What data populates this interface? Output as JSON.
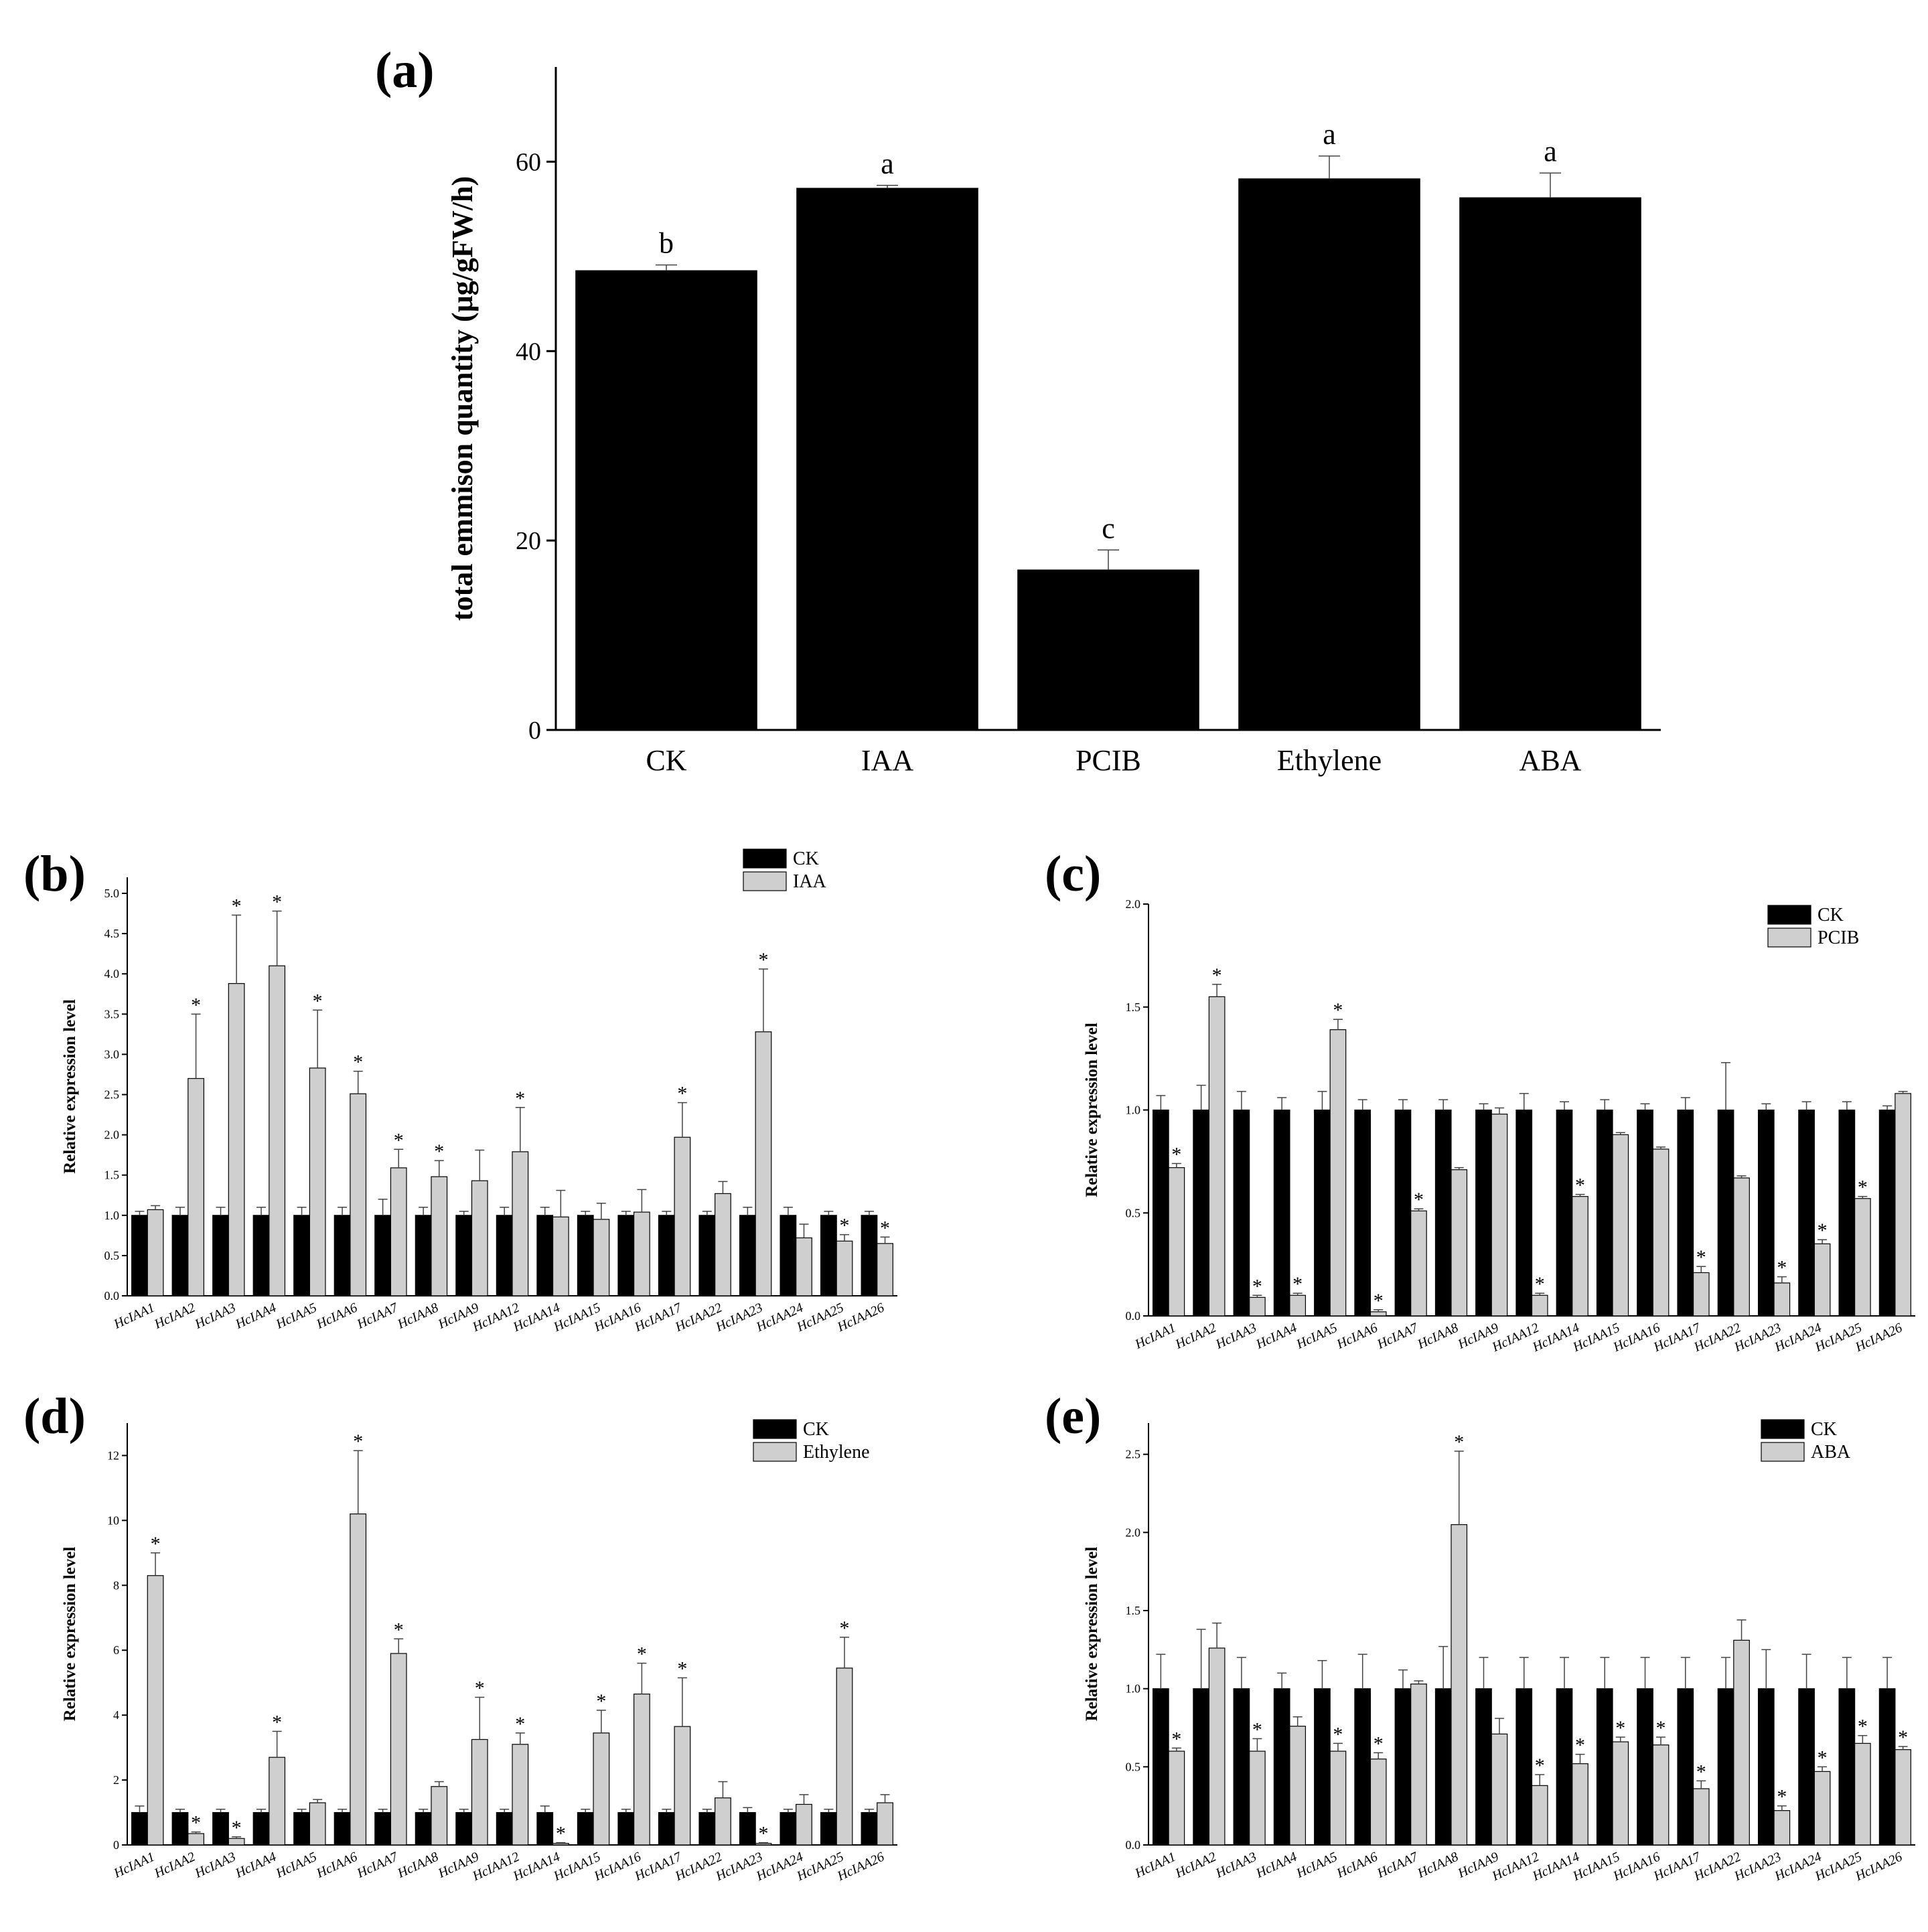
{
  "colors": {
    "control": "#000000",
    "treatment": "#cfcfcf",
    "axis": "#000000"
  },
  "chart_data": [
    {
      "id": "a",
      "panel_label": "(a)",
      "type": "bar",
      "ylabel": "total emmison quantity (μg/gFW/h)",
      "ylim": [
        0,
        70
      ],
      "yticks": [
        0,
        20,
        40,
        60
      ],
      "categories": [
        "CK",
        "IAA",
        "PCIB",
        "Ethylene",
        "ABA"
      ],
      "series": [
        {
          "values": [
            48.5,
            57.2,
            16.9,
            58.2,
            56.2
          ],
          "errors": [
            0.6,
            0.3,
            2.1,
            2.4,
            2.6
          ]
        }
      ],
      "significance": [
        "b",
        "a",
        "c",
        "a",
        "a"
      ]
    },
    {
      "id": "b",
      "panel_label": "(b)",
      "type": "bar",
      "ylabel": "Relative expression level",
      "ylim": [
        0,
        5.2
      ],
      "yticks": [
        "0.0",
        "0.5",
        "1.0",
        "1.5",
        "2.0",
        "2.5",
        "3.0",
        "3.5",
        "4.0",
        "4.5",
        "5.0"
      ],
      "categories": [
        "HcIAA1",
        "HcIAA2",
        "HcIAA3",
        "HcIAA4",
        "HcIAA5",
        "HcIAA6",
        "HcIAA7",
        "HcIAA8",
        "HcIAA9",
        "HcIAA12",
        "HcIAA14",
        "HcIAA15",
        "HcIAA16",
        "HcIAA17",
        "HcIAA22",
        "HcIAA23",
        "HcIAA24",
        "HcIAA25",
        "HcIAA26"
      ],
      "legend": [
        "CK",
        "IAA"
      ],
      "series": [
        {
          "name": "CK",
          "values": [
            1,
            1,
            1,
            1,
            1,
            1,
            1,
            1,
            1,
            1,
            1,
            1,
            1,
            1,
            1,
            1,
            1,
            1,
            1
          ],
          "errors": [
            0.05,
            0.1,
            0.1,
            0.1,
            0.1,
            0.1,
            0.2,
            0.1,
            0.05,
            0.1,
            0.1,
            0.05,
            0.05,
            0.05,
            0.05,
            0.1,
            0.1,
            0.05,
            0.05
          ]
        },
        {
          "name": "IAA",
          "values": [
            1.07,
            2.7,
            3.88,
            4.1,
            2.83,
            2.51,
            1.59,
            1.48,
            1.43,
            1.79,
            0.98,
            0.95,
            1.04,
            1.97,
            1.27,
            3.28,
            0.72,
            0.68,
            0.65
          ],
          "errors": [
            0.05,
            0.8,
            0.85,
            0.68,
            0.72,
            0.28,
            0.23,
            0.2,
            0.38,
            0.55,
            0.33,
            0.2,
            0.28,
            0.43,
            0.15,
            0.78,
            0.17,
            0.08,
            0.08
          ]
        }
      ],
      "significance": [
        "",
        "*",
        "*",
        "*",
        "*",
        "*",
        "*",
        "*",
        "",
        "*",
        "",
        "",
        "",
        "*",
        "",
        "*",
        "",
        "*",
        "*"
      ]
    },
    {
      "id": "c",
      "panel_label": "(c)",
      "type": "bar",
      "ylabel": "Relative expression level",
      "ylim": [
        0,
        2.0
      ],
      "yticks": [
        "0.0",
        "0.5",
        "1.0",
        "1.5",
        "2.0"
      ],
      "categories": [
        "HcIAA1",
        "HcIAA2",
        "HcIAA3",
        "HcIAA4",
        "HcIAA5",
        "HcIAA6",
        "HcIAA7",
        "HcIAA8",
        "HcIAA9",
        "HcIAA12",
        "HcIAA14",
        "HcIAA15",
        "HcIAA16",
        "HcIAA17",
        "HcIAA22",
        "HcIAA23",
        "HcIAA24",
        "HcIAA25",
        "HcIAA26"
      ],
      "legend": [
        "CK",
        "PCIB"
      ],
      "series": [
        {
          "name": "CK",
          "values": [
            1,
            1,
            1,
            1,
            1,
            1,
            1,
            1,
            1,
            1,
            1,
            1,
            1,
            1,
            1,
            1,
            1,
            1,
            1
          ],
          "errors": [
            0.07,
            0.12,
            0.09,
            0.06,
            0.09,
            0.05,
            0.05,
            0.05,
            0.03,
            0.08,
            0.04,
            0.05,
            0.03,
            0.06,
            0.23,
            0.03,
            0.04,
            0.04,
            0.02
          ]
        },
        {
          "name": "PCIB",
          "values": [
            0.72,
            1.55,
            0.09,
            0.1,
            1.39,
            0.02,
            0.51,
            0.71,
            0.98,
            0.1,
            0.58,
            0.88,
            0.81,
            0.21,
            0.67,
            0.16,
            0.35,
            0.57,
            1.08
          ],
          "errors": [
            0.02,
            0.06,
            0.01,
            0.01,
            0.05,
            0.01,
            0.01,
            0.01,
            0.03,
            0.01,
            0.01,
            0.01,
            0.01,
            0.03,
            0.01,
            0.03,
            0.02,
            0.01,
            0.01
          ]
        }
      ],
      "significance": [
        "*",
        "*",
        "*",
        "*",
        "*",
        "*",
        "*",
        "",
        "",
        "*",
        "*",
        "",
        "",
        "*",
        "",
        "*",
        "*",
        "*",
        ""
      ]
    },
    {
      "id": "d",
      "panel_label": "(d)",
      "type": "bar",
      "ylabel": "Relative expression level",
      "ylim": [
        0,
        13
      ],
      "yticks": [
        "0",
        "2",
        "4",
        "6",
        "8",
        "10",
        "12"
      ],
      "categories": [
        "HcIAA1",
        "HcIAA2",
        "HcIAA3",
        "HcIAA4",
        "HcIAA5",
        "HcIAA6",
        "HcIAA7",
        "HcIAA8",
        "HcIAA9",
        "HcIAA12",
        "HcIAA14",
        "HcIAA15",
        "HcIAA16",
        "HcIAA17",
        "HcIAA22",
        "HcIAA23",
        "HcIAA24",
        "HcIAA25",
        "HcIAA26"
      ],
      "legend": [
        "CK",
        "Ethylene"
      ],
      "series": [
        {
          "name": "CK",
          "values": [
            1,
            1,
            1,
            1,
            1,
            1,
            1,
            1,
            1,
            1,
            1,
            1,
            1,
            1,
            1,
            1,
            1,
            1,
            1
          ],
          "errors": [
            0.2,
            0.1,
            0.1,
            0.1,
            0.1,
            0.1,
            0.1,
            0.1,
            0.1,
            0.1,
            0.2,
            0.1,
            0.1,
            0.1,
            0.1,
            0.15,
            0.1,
            0.1,
            0.1
          ]
        },
        {
          "name": "Ethylene",
          "values": [
            8.3,
            0.35,
            0.2,
            2.7,
            1.3,
            10.2,
            5.9,
            1.8,
            3.25,
            3.1,
            0.05,
            3.45,
            4.65,
            3.65,
            1.45,
            0.05,
            1.25,
            5.45,
            1.3
          ],
          "errors": [
            0.7,
            0.05,
            0.05,
            0.8,
            0.1,
            1.95,
            0.45,
            0.15,
            1.3,
            0.35,
            0.02,
            0.7,
            0.95,
            1.5,
            0.5,
            0.02,
            0.3,
            0.95,
            0.25
          ]
        }
      ],
      "significance": [
        "*",
        "*",
        "*",
        "*",
        "",
        "*",
        "*",
        "",
        "*",
        "*",
        "*",
        "*",
        "*",
        "*",
        "",
        "*",
        "",
        "*",
        ""
      ]
    },
    {
      "id": "e",
      "panel_label": "(e)",
      "type": "bar",
      "ylabel": "Relative expression level",
      "ylim": [
        0,
        2.7
      ],
      "yticks": [
        "0.0",
        "0.5",
        "1.0",
        "1.5",
        "2.0",
        "2.5"
      ],
      "categories": [
        "HcIAA1",
        "HcIAA2",
        "HcIAA3",
        "HcIAA4",
        "HcIAA5",
        "HcIAA6",
        "HcIAA7",
        "HcIAA8",
        "HcIAA9",
        "HcIAA12",
        "HcIAA14",
        "HcIAA15",
        "HcIAA16",
        "HcIAA17",
        "HcIAA22",
        "HcIAA23",
        "HcIAA24",
        "HcIAA25",
        "HcIAA26"
      ],
      "legend": [
        "CK",
        "ABA"
      ],
      "series": [
        {
          "name": "CK",
          "values": [
            1,
            1,
            1,
            1,
            1,
            1,
            1,
            1,
            1,
            1,
            1,
            1,
            1,
            1,
            1,
            1,
            1,
            1,
            1
          ],
          "errors": [
            0.22,
            0.38,
            0.2,
            0.1,
            0.18,
            0.22,
            0.12,
            0.27,
            0.2,
            0.2,
            0.2,
            0.2,
            0.2,
            0.2,
            0.2,
            0.25,
            0.22,
            0.2,
            0.2
          ]
        },
        {
          "name": "ABA",
          "values": [
            0.6,
            1.26,
            0.6,
            0.76,
            0.6,
            0.55,
            1.03,
            2.05,
            0.71,
            0.38,
            0.52,
            0.66,
            0.64,
            0.36,
            1.31,
            0.22,
            0.47,
            0.65,
            0.61
          ],
          "errors": [
            0.02,
            0.16,
            0.08,
            0.06,
            0.05,
            0.04,
            0.02,
            0.47,
            0.1,
            0.07,
            0.06,
            0.03,
            0.05,
            0.05,
            0.13,
            0.03,
            0.03,
            0.05,
            0.02
          ]
        }
      ],
      "significance": [
        "*",
        "",
        "*",
        "",
        "*",
        "*",
        "",
        "*",
        "",
        "*",
        "*",
        "*",
        "*",
        "*",
        "",
        "*",
        "*",
        "*",
        "*"
      ]
    }
  ]
}
